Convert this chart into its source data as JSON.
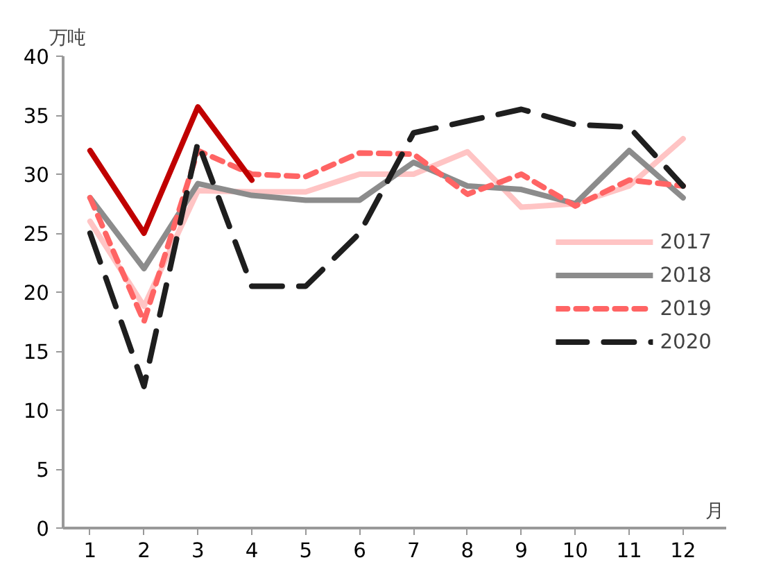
{
  "chart_data": {
    "type": "line",
    "xlabel": "月",
    "ylabel": "万吨",
    "x": [
      1,
      2,
      3,
      4,
      5,
      6,
      7,
      8,
      9,
      10,
      11,
      12
    ],
    "xlim": [
      0.5,
      12.8
    ],
    "xticks": [
      1,
      2,
      3,
      4,
      5,
      6,
      7,
      8,
      9,
      10,
      11,
      12
    ],
    "ylim": [
      0,
      40
    ],
    "yticks": [
      0,
      5,
      10,
      15,
      20,
      25,
      30,
      35,
      40
    ],
    "grid": false,
    "legend": "right",
    "series": [
      {
        "name": "2017",
        "color": "#ffc4c4",
        "line_style": "solid",
        "values": [
          26,
          18.8,
          28.6,
          28.5,
          28.5,
          30,
          30,
          31.9,
          27.2,
          27.5,
          29,
          33
        ]
      },
      {
        "name": "2018",
        "color": "#8c8c8c",
        "line_style": "solid",
        "values": [
          28,
          22,
          29.2,
          28.2,
          27.8,
          27.8,
          31,
          29,
          28.7,
          27.5,
          32,
          28
        ]
      },
      {
        "name": "2019",
        "color": "#ff6464",
        "line_style": "dashed",
        "values": [
          28,
          17.5,
          32,
          30,
          29.8,
          31.8,
          31.7,
          28.3,
          30,
          27.3,
          29.5,
          29
        ]
      },
      {
        "name": "2020",
        "color": "#1e1e1e",
        "line_style": "longdash",
        "values": [
          25,
          12,
          32.7,
          20.5,
          20.5,
          25,
          33.5,
          34.5,
          35.5,
          34.2,
          34,
          29
        ]
      },
      {
        "color": "#c00000",
        "line_style": "solid",
        "values": [
          32,
          25,
          35.7,
          29.5,
          null,
          null,
          null,
          null,
          null,
          null,
          null,
          null
        ]
      }
    ]
  }
}
